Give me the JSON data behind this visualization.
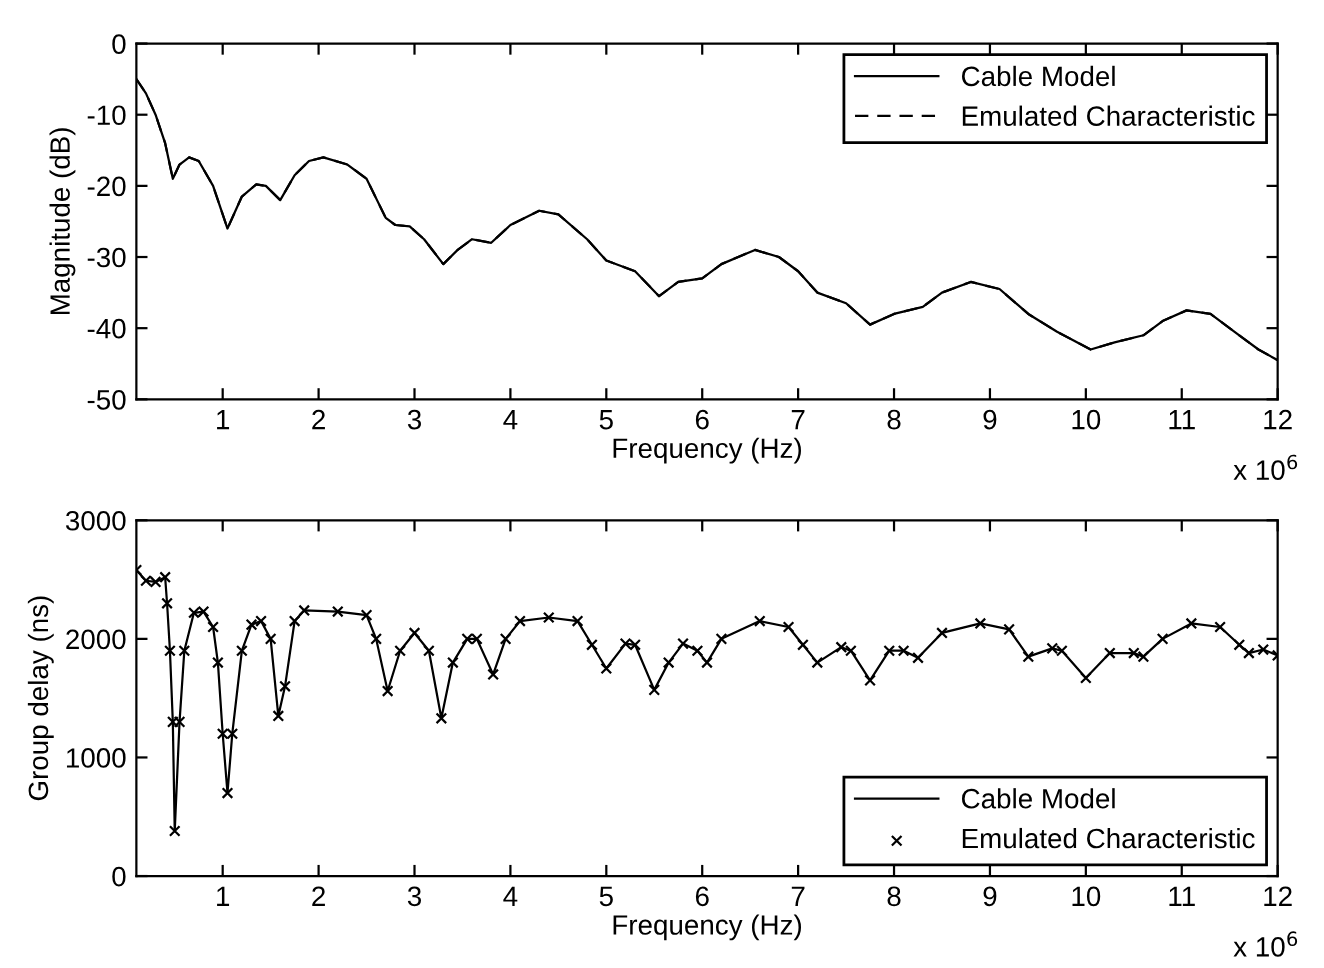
{
  "chart_data": [
    {
      "type": "line",
      "xlabel": "Frequency (Hz)",
      "ylabel": "Magnitude (dB)",
      "annotations": [
        "x 10$^{6}$"
      ],
      "legend": "top right",
      "grid": false,
      "xlim": [
        0.1,
        12
      ],
      "xticks": [
        1,
        2,
        3,
        4,
        5,
        6,
        7,
        8,
        9,
        10,
        11,
        12
      ],
      "ylim": [
        -50,
        0
      ],
      "yticks": [
        -50,
        -40,
        -30,
        -20,
        -10,
        0
      ],
      "x": [
        0.1,
        0.2,
        0.3,
        0.4,
        0.48,
        0.55,
        0.65,
        0.75,
        0.9,
        1.05,
        1.2,
        1.35,
        1.45,
        1.6,
        1.75,
        1.9,
        2.05,
        2.3,
        2.5,
        2.7,
        2.8,
        2.95,
        3.1,
        3.3,
        3.45,
        3.6,
        3.8,
        4.0,
        4.3,
        4.5,
        4.8,
        5.0,
        5.3,
        5.55,
        5.75,
        6.0,
        6.2,
        6.55,
        6.8,
        7.0,
        7.2,
        7.5,
        7.75,
        8.0,
        8.3,
        8.5,
        8.8,
        9.1,
        9.4,
        9.7,
        10.05,
        10.3,
        10.6,
        10.8,
        11.05,
        11.3,
        11.6,
        11.8,
        12.0
      ],
      "series": [
        {
          "name": "Cable Model",
          "color": "#000000",
          "line_style": "solid",
          "marker": "none",
          "values": [
            -5,
            -7,
            -10,
            -14,
            -19,
            -17,
            -16,
            -16.5,
            -20,
            -26,
            -21.5,
            -19.8,
            -20,
            -22,
            -18.5,
            -16.5,
            -16,
            -17,
            -19,
            -24.5,
            -25.5,
            -25.7,
            -27.5,
            -31,
            -29,
            -27.5,
            -28,
            -25.5,
            -23.5,
            -24,
            -27.5,
            -30.5,
            -32,
            -35.5,
            -33.5,
            -33,
            -31,
            -29,
            -30,
            -32,
            -35,
            -36.5,
            -39.5,
            -38,
            -37,
            -35,
            -33.5,
            -34.5,
            -38,
            -40.5,
            -43,
            -42,
            -41,
            -39,
            -37.5,
            -38,
            -41,
            -43,
            -44.5
          ]
        },
        {
          "name": "Emulated Characteristic",
          "color": "#000000",
          "line_style": "dashed",
          "marker": "none",
          "values": [
            -5,
            -7,
            -10,
            -14,
            -19,
            -17,
            -16,
            -16.5,
            -20,
            -26,
            -21.5,
            -19.8,
            -20,
            -22,
            -18.5,
            -16.5,
            -16,
            -17,
            -19,
            -24.5,
            -25.5,
            -25.7,
            -27.5,
            -31,
            -29,
            -27.5,
            -28,
            -25.5,
            -23.5,
            -24,
            -27.5,
            -30.5,
            -32,
            -35.5,
            -33.5,
            -33,
            -31,
            -29,
            -30,
            -32,
            -35,
            -36.5,
            -39.5,
            -38,
            -37,
            -35,
            -33.5,
            -34.5,
            -38,
            -40.5,
            -43,
            -42,
            -41,
            -39,
            -37.5,
            -38,
            -41,
            -43,
            -44.5
          ]
        }
      ]
    },
    {
      "type": "line",
      "xlabel": "Frequency (Hz)",
      "ylabel": "Group delay (ns)",
      "annotations": [
        "x 10$^{6}$"
      ],
      "legend": "bottom right",
      "grid": false,
      "xlim": [
        0.1,
        12
      ],
      "xticks": [
        1,
        2,
        3,
        4,
        5,
        6,
        7,
        8,
        9,
        10,
        11,
        12
      ],
      "ylim": [
        0,
        3000
      ],
      "yticks": [
        0,
        1000,
        2000,
        3000
      ],
      "x": [
        0.1,
        0.2,
        0.3,
        0.4,
        0.42,
        0.45,
        0.48,
        0.5,
        0.55,
        0.6,
        0.7,
        0.8,
        0.9,
        0.95,
        1.0,
        1.05,
        1.1,
        1.2,
        1.3,
        1.4,
        1.5,
        1.58,
        1.65,
        1.75,
        1.85,
        2.2,
        2.5,
        2.6,
        2.72,
        2.85,
        3.0,
        3.15,
        3.28,
        3.4,
        3.55,
        3.65,
        3.82,
        3.95,
        4.1,
        4.4,
        4.7,
        4.85,
        5.0,
        5.2,
        5.3,
        5.5,
        5.65,
        5.8,
        5.95,
        6.05,
        6.2,
        6.6,
        6.9,
        7.05,
        7.2,
        7.45,
        7.55,
        7.75,
        7.95,
        8.1,
        8.25,
        8.5,
        8.9,
        9.2,
        9.4,
        9.65,
        9.75,
        10.0,
        10.25,
        10.5,
        10.6,
        10.8,
        11.1,
        11.4,
        11.6,
        11.7,
        11.85,
        12.0
      ],
      "series": [
        {
          "name": "Cable Model",
          "color": "#000000",
          "line_style": "solid",
          "marker": "none",
          "values": [
            2580,
            2490,
            2480,
            2520,
            2300,
            1900,
            1300,
            380,
            1300,
            1900,
            2220,
            2230,
            2100,
            1800,
            1200,
            700,
            1200,
            1900,
            2120,
            2150,
            2000,
            1350,
            1600,
            2150,
            2240,
            2230,
            2200,
            2000,
            1560,
            1900,
            2050,
            1900,
            1330,
            1800,
            2000,
            2000,
            1700,
            2000,
            2150,
            2180,
            2150,
            1950,
            1750,
            1960,
            1950,
            1570,
            1800,
            1960,
            1900,
            1800,
            2000,
            2150,
            2100,
            1950,
            1800,
            1930,
            1900,
            1650,
            1900,
            1900,
            1840,
            2050,
            2130,
            2080,
            1850,
            1920,
            1900,
            1670,
            1880,
            1880,
            1850,
            2000,
            2130,
            2100,
            1950,
            1880,
            1910,
            1860
          ]
        },
        {
          "name": "Emulated Characteristic",
          "type": "scatter",
          "color": "#000000",
          "marker": "cross",
          "values": [
            2580,
            2490,
            2480,
            2520,
            2300,
            1900,
            1300,
            380,
            1300,
            1900,
            2220,
            2230,
            2100,
            1800,
            1200,
            700,
            1200,
            1900,
            2120,
            2150,
            2000,
            1350,
            1600,
            2150,
            2240,
            2230,
            2200,
            2000,
            1560,
            1900,
            2050,
            1900,
            1330,
            1800,
            2000,
            2000,
            1700,
            2000,
            2150,
            2180,
            2150,
            1950,
            1750,
            1960,
            1950,
            1570,
            1800,
            1960,
            1900,
            1800,
            2000,
            2150,
            2100,
            1950,
            1800,
            1930,
            1900,
            1650,
            1900,
            1900,
            1840,
            2050,
            2130,
            2080,
            1850,
            1920,
            1900,
            1670,
            1880,
            1880,
            1850,
            2000,
            2130,
            2100,
            1950,
            1880,
            1910,
            1860
          ]
        }
      ]
    }
  ]
}
